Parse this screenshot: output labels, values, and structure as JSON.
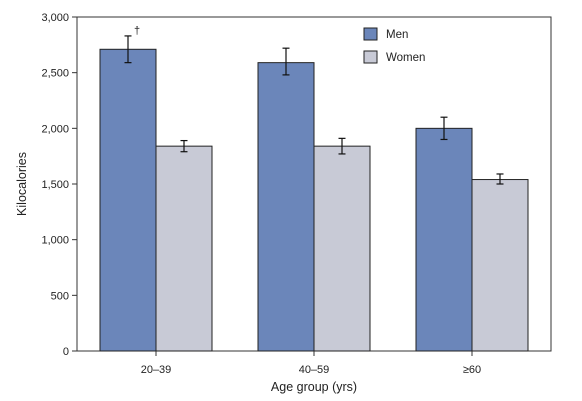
{
  "chart_data": {
    "type": "bar",
    "title": "",
    "xlabel": "Age group (yrs)",
    "ylabel": "Kilocalories",
    "categories": [
      "20–39",
      "40–59",
      "≥60"
    ],
    "ylim": [
      0,
      3000
    ],
    "yticks": [
      0,
      500,
      1000,
      1500,
      2000,
      2500,
      3000
    ],
    "ytick_labels": [
      "0",
      "500",
      "1,000",
      "1,500",
      "2,000",
      "2,500",
      "3,000"
    ],
    "grid": false,
    "legend_position": "top-right",
    "series": [
      {
        "name": "Men",
        "color": "#6b86ba",
        "values": [
          2710,
          2590,
          2000
        ],
        "error_low": [
          2590,
          2480,
          1900
        ],
        "error_high": [
          2830,
          2720,
          2100
        ]
      },
      {
        "name": "Women",
        "color": "#c8cad6",
        "values": [
          1840,
          1840,
          1540
        ],
        "error_low": [
          1790,
          1770,
          1500
        ],
        "error_high": [
          1890,
          1910,
          1590
        ]
      }
    ],
    "annotations": [
      {
        "text": "†",
        "series": 0,
        "category": 0
      }
    ]
  }
}
